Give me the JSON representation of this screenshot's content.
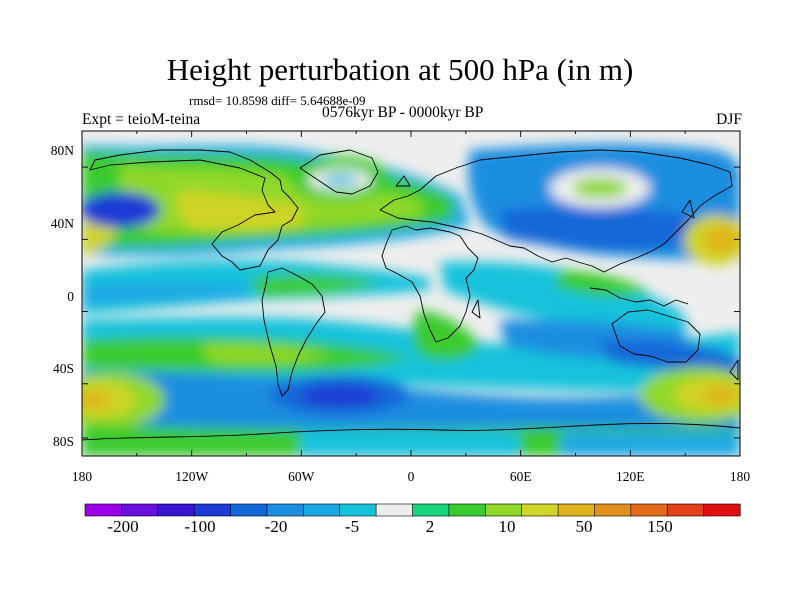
{
  "header": {
    "title": "Height perturbation at 500 hPa (in m)",
    "stats": "rmsd= 10.8598 diff= 5.64688e-09",
    "expt": "Expt = teioM-teina",
    "period": "0576kyr BP - 0000kyr BP",
    "season": "DJF"
  },
  "axes": {
    "lon_labels": [
      "180",
      "120W",
      "60W",
      "0",
      "60E",
      "120E",
      "180"
    ],
    "lat_labels": [
      "80N",
      "40N",
      "0",
      "40S",
      "80S"
    ]
  },
  "colorbar": {
    "labels": [
      "-200",
      "-100",
      "-20",
      "-5",
      "2",
      "10",
      "50",
      "150"
    ],
    "colors": [
      "#9b00e8",
      "#6a0ee0",
      "#3a16d2",
      "#1c3bd6",
      "#1268d8",
      "#1a8ee0",
      "#1aa8e4",
      "#14c2dc",
      "#eeeeee",
      "#16d57a",
      "#3acb2e",
      "#8fd82a",
      "#cfd428",
      "#e0b41e",
      "#e2901e",
      "#e66a1c",
      "#e4401a",
      "#e00d12"
    ]
  },
  "palette": {
    "ocean_neutral": "#eeeeee",
    "coastline": "#000000"
  }
}
